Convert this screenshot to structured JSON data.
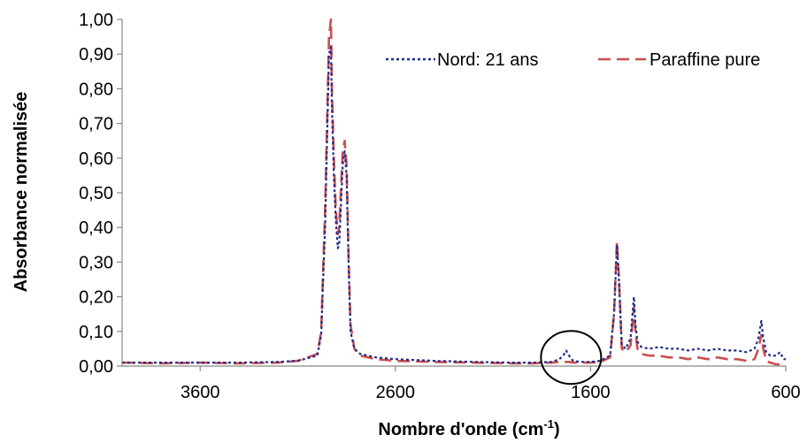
{
  "chart_data": {
    "type": "line",
    "title": "",
    "xlabel": "Nombre d'onde (cm",
    "xlabel_sup": "-1",
    "xlabel_close": ")",
    "ylabel": "Absorbance normalisée",
    "xlim": [
      4000,
      600
    ],
    "ylim": [
      0,
      1
    ],
    "x_reversed": true,
    "x_ticks": [
      3600,
      2600,
      1600,
      600
    ],
    "x_tick_labels": [
      "3600",
      "2600",
      "1600",
      "600"
    ],
    "y_ticks": [
      0,
      0.1,
      0.2,
      0.3,
      0.4,
      0.5,
      0.6,
      0.7,
      0.8,
      0.9,
      1.0
    ],
    "y_tick_labels": [
      "0,00",
      "0,10",
      "0,20",
      "0,30",
      "0,40",
      "0,50",
      "0,60",
      "0,70",
      "0,80",
      "0,90",
      "1,00"
    ],
    "grid": false,
    "legend_position": "top-right",
    "annotation": {
      "type": "circle",
      "x": 1700,
      "y": 0.025,
      "note": "highlighted peak"
    },
    "series": [
      {
        "name": "Nord: 21 ans",
        "color": "#1f2a8a",
        "style": "dotted",
        "points": [
          [
            4000,
            0.01
          ],
          [
            3800,
            0.01
          ],
          [
            3600,
            0.01
          ],
          [
            3400,
            0.01
          ],
          [
            3200,
            0.012
          ],
          [
            3100,
            0.015
          ],
          [
            3000,
            0.03
          ],
          [
            2980,
            0.09
          ],
          [
            2970,
            0.25
          ],
          [
            2960,
            0.4
          ],
          [
            2950,
            0.65
          ],
          [
            2940,
            0.9
          ],
          [
            2930,
            0.92
          ],
          [
            2925,
            0.75
          ],
          [
            2915,
            0.55
          ],
          [
            2905,
            0.42
          ],
          [
            2895,
            0.34
          ],
          [
            2888,
            0.35
          ],
          [
            2880,
            0.45
          ],
          [
            2870,
            0.58
          ],
          [
            2860,
            0.62
          ],
          [
            2850,
            0.55
          ],
          [
            2840,
            0.3
          ],
          [
            2830,
            0.1
          ],
          [
            2810,
            0.05
          ],
          [
            2780,
            0.035
          ],
          [
            2700,
            0.025
          ],
          [
            2600,
            0.02
          ],
          [
            2400,
            0.015
          ],
          [
            2200,
            0.012
          ],
          [
            2000,
            0.01
          ],
          [
            1900,
            0.01
          ],
          [
            1800,
            0.012
          ],
          [
            1760,
            0.02
          ],
          [
            1740,
            0.03
          ],
          [
            1725,
            0.045
          ],
          [
            1710,
            0.03
          ],
          [
            1690,
            0.015
          ],
          [
            1650,
            0.012
          ],
          [
            1600,
            0.012
          ],
          [
            1550,
            0.015
          ],
          [
            1500,
            0.03
          ],
          [
            1480,
            0.15
          ],
          [
            1465,
            0.35
          ],
          [
            1455,
            0.25
          ],
          [
            1440,
            0.06
          ],
          [
            1420,
            0.05
          ],
          [
            1395,
            0.08
          ],
          [
            1378,
            0.2
          ],
          [
            1370,
            0.12
          ],
          [
            1360,
            0.07
          ],
          [
            1340,
            0.055
          ],
          [
            1300,
            0.05
          ],
          [
            1250,
            0.055
          ],
          [
            1200,
            0.05
          ],
          [
            1150,
            0.05
          ],
          [
            1100,
            0.045
          ],
          [
            1050,
            0.05
          ],
          [
            1000,
            0.045
          ],
          [
            950,
            0.05
          ],
          [
            900,
            0.045
          ],
          [
            850,
            0.045
          ],
          [
            800,
            0.04
          ],
          [
            760,
            0.05
          ],
          [
            740,
            0.08
          ],
          [
            725,
            0.13
          ],
          [
            715,
            0.08
          ],
          [
            700,
            0.04
          ],
          [
            680,
            0.03
          ],
          [
            650,
            0.03
          ],
          [
            630,
            0.04
          ],
          [
            610,
            0.02
          ],
          [
            600,
            0.02
          ]
        ]
      },
      {
        "name": "Paraffine pure",
        "color": "#c8504f",
        "style": "dashed",
        "points": [
          [
            4000,
            0.01
          ],
          [
            3800,
            0.008
          ],
          [
            3600,
            0.01
          ],
          [
            3400,
            0.008
          ],
          [
            3200,
            0.01
          ],
          [
            3100,
            0.015
          ],
          [
            3000,
            0.035
          ],
          [
            2980,
            0.1
          ],
          [
            2970,
            0.28
          ],
          [
            2960,
            0.45
          ],
          [
            2950,
            0.7
          ],
          [
            2940,
            0.95
          ],
          [
            2930,
            1.0
          ],
          [
            2925,
            0.8
          ],
          [
            2915,
            0.6
          ],
          [
            2905,
            0.45
          ],
          [
            2895,
            0.38
          ],
          [
            2888,
            0.4
          ],
          [
            2880,
            0.5
          ],
          [
            2870,
            0.62
          ],
          [
            2860,
            0.65
          ],
          [
            2850,
            0.58
          ],
          [
            2840,
            0.32
          ],
          [
            2830,
            0.12
          ],
          [
            2810,
            0.05
          ],
          [
            2780,
            0.03
          ],
          [
            2700,
            0.02
          ],
          [
            2600,
            0.015
          ],
          [
            2400,
            0.012
          ],
          [
            2200,
            0.01
          ],
          [
            2000,
            0.008
          ],
          [
            1900,
            0.008
          ],
          [
            1800,
            0.01
          ],
          [
            1760,
            0.012
          ],
          [
            1740,
            0.012
          ],
          [
            1725,
            0.012
          ],
          [
            1710,
            0.012
          ],
          [
            1690,
            0.01
          ],
          [
            1650,
            0.01
          ],
          [
            1600,
            0.01
          ],
          [
            1550,
            0.012
          ],
          [
            1500,
            0.025
          ],
          [
            1480,
            0.15
          ],
          [
            1465,
            0.36
          ],
          [
            1455,
            0.26
          ],
          [
            1440,
            0.05
          ],
          [
            1420,
            0.04
          ],
          [
            1395,
            0.06
          ],
          [
            1378,
            0.17
          ],
          [
            1370,
            0.1
          ],
          [
            1360,
            0.05
          ],
          [
            1340,
            0.035
          ],
          [
            1300,
            0.03
          ],
          [
            1250,
            0.03
          ],
          [
            1200,
            0.025
          ],
          [
            1150,
            0.025
          ],
          [
            1100,
            0.02
          ],
          [
            1050,
            0.025
          ],
          [
            1000,
            0.02
          ],
          [
            950,
            0.025
          ],
          [
            900,
            0.02
          ],
          [
            850,
            0.02
          ],
          [
            800,
            0.015
          ],
          [
            760,
            0.02
          ],
          [
            740,
            0.05
          ],
          [
            725,
            0.09
          ],
          [
            715,
            0.05
          ],
          [
            700,
            0.015
          ],
          [
            680,
            0.01
          ],
          [
            650,
            0.005
          ],
          [
            630,
            0.005
          ],
          [
            610,
            0.005
          ],
          [
            600,
            0.005
          ]
        ]
      }
    ]
  }
}
